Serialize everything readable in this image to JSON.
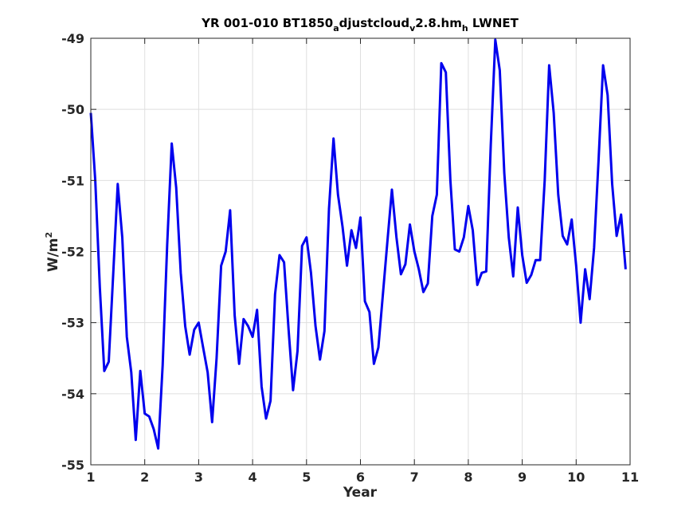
{
  "chart_data": {
    "type": "line",
    "title_parts": {
      "a": "YR 001-010 BT1850",
      "b": "a",
      "c": "djustcloud",
      "d": "v",
      "e": "2.8.hm",
      "f": "h",
      "g": " LWNET"
    },
    "xlabel": "Year",
    "ylabel_parts": {
      "base": "W/m",
      "exp": "2"
    },
    "xlim": [
      1,
      11
    ],
    "ylim": [
      -55,
      -49
    ],
    "xticks": [
      "1",
      "2",
      "3",
      "4",
      "5",
      "6",
      "7",
      "8",
      "9",
      "10",
      "11"
    ],
    "yticks": [
      "-49",
      "-50",
      "-51",
      "-52",
      "-53",
      "-54",
      "-55"
    ],
    "grid": true,
    "line_color": "#0000ee",
    "x": [
      1.0,
      1.083,
      1.167,
      1.25,
      1.333,
      1.417,
      1.5,
      1.583,
      1.667,
      1.75,
      1.833,
      1.917,
      2.0,
      2.083,
      2.167,
      2.25,
      2.333,
      2.417,
      2.5,
      2.583,
      2.667,
      2.75,
      2.833,
      2.917,
      3.0,
      3.083,
      3.167,
      3.25,
      3.333,
      3.417,
      3.5,
      3.583,
      3.667,
      3.75,
      3.833,
      3.917,
      4.0,
      4.083,
      4.167,
      4.25,
      4.333,
      4.417,
      4.5,
      4.583,
      4.667,
      4.75,
      4.833,
      4.917,
      5.0,
      5.083,
      5.167,
      5.25,
      5.333,
      5.417,
      5.5,
      5.583,
      5.667,
      5.75,
      5.833,
      5.917,
      6.0,
      6.083,
      6.167,
      6.25,
      6.333,
      6.417,
      6.5,
      6.583,
      6.667,
      6.75,
      6.833,
      6.917,
      7.0,
      7.083,
      7.167,
      7.25,
      7.333,
      7.417,
      7.5,
      7.583,
      7.667,
      7.75,
      7.833,
      7.917,
      8.0,
      8.083,
      8.167,
      8.25,
      8.333,
      8.417,
      8.5,
      8.583,
      8.667,
      8.75,
      8.833,
      8.917,
      9.0,
      9.083,
      9.167,
      9.25,
      9.333,
      9.417,
      9.5,
      9.583,
      9.667,
      9.75,
      9.833,
      9.917,
      10.0,
      10.083,
      10.167,
      10.25,
      10.333,
      10.417,
      10.5,
      10.583,
      10.667,
      10.75,
      10.833,
      10.917
    ],
    "values": [
      -50.05,
      -51.0,
      -52.5,
      -53.68,
      -53.55,
      -52.3,
      -51.05,
      -51.8,
      -53.2,
      -53.7,
      -54.65,
      -53.68,
      -54.28,
      -54.32,
      -54.5,
      -54.77,
      -53.6,
      -51.9,
      -50.48,
      -51.1,
      -52.3,
      -53.05,
      -53.45,
      -53.1,
      -53.0,
      -53.35,
      -53.7,
      -54.4,
      -53.5,
      -52.2,
      -52.0,
      -51.42,
      -52.9,
      -53.58,
      -52.95,
      -53.05,
      -53.2,
      -52.82,
      -53.9,
      -54.35,
      -54.1,
      -52.6,
      -52.05,
      -52.15,
      -53.1,
      -53.95,
      -53.4,
      -51.92,
      -51.8,
      -52.3,
      -53.05,
      -53.52,
      -53.12,
      -51.4,
      -50.41,
      -51.2,
      -51.65,
      -52.2,
      -51.7,
      -51.95,
      -51.52,
      -52.7,
      -52.85,
      -53.58,
      -53.35,
      -52.6,
      -51.85,
      -51.13,
      -51.8,
      -52.32,
      -52.18,
      -51.62,
      -52.0,
      -52.25,
      -52.57,
      -52.45,
      -51.5,
      -51.2,
      -49.35,
      -49.48,
      -51.0,
      -51.97,
      -52.0,
      -51.8,
      -51.36,
      -51.7,
      -52.47,
      -52.3,
      -52.28,
      -50.5,
      -49.02,
      -49.45,
      -50.9,
      -51.8,
      -52.35,
      -51.38,
      -52.05,
      -52.44,
      -52.33,
      -52.12,
      -52.12,
      -51.0,
      -49.38,
      -50.05,
      -51.2,
      -51.78,
      -51.9,
      -51.55,
      -52.2,
      -53.0,
      -52.25,
      -52.67,
      -51.95,
      -50.7,
      -49.38,
      -49.8,
      -51.05,
      -51.78,
      -51.48,
      -52.25
    ]
  }
}
